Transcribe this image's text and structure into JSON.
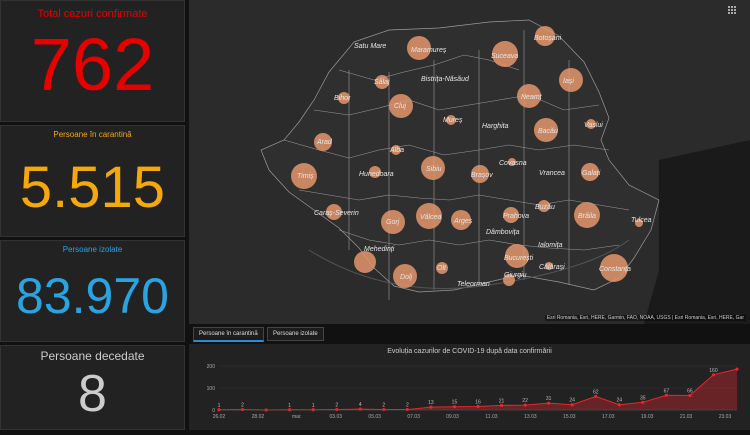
{
  "stats": {
    "confirmed": {
      "label": "Total cazuri confirmate",
      "value": "762",
      "color": "#e60000"
    },
    "quarantine": {
      "label": "Persoane în carantină",
      "value": "5.515",
      "color": "#f4a80b"
    },
    "isolated": {
      "label": "Persoane izolate",
      "value": "83.970",
      "color": "#29a4e0"
    },
    "deceased": {
      "label": "Persoane decedate",
      "value": "8",
      "color": "#cccccc"
    }
  },
  "map": {
    "cities": [
      "Satu Mare",
      "Maramureș",
      "Suceava",
      "Botoșani",
      "Sălaj",
      "Bistrița-Năsăud",
      "Iași",
      "Bihor",
      "Cluj",
      "Neamț",
      "Mureș",
      "Harghita",
      "Bacău",
      "Vaslui",
      "Arad",
      "Alba",
      "Covasna",
      "Galați",
      "Timiș",
      "Hunedoara",
      "Sibiu",
      "Brașov",
      "Vrancea",
      "Buzău",
      "Brăila",
      "Caraș-Severin",
      "Gorj",
      "Vâlcea",
      "Argeș",
      "Prahova",
      "Tulcea",
      "Mehedinți",
      "Dâmbovița",
      "Ialomița",
      "București",
      "Dolj",
      "Olt",
      "Giurgiu",
      "Călărași",
      "Constanța",
      "Teleorman"
    ],
    "attribution": "Esri Romania, Esri, HERE, Garmin, FAO, NOAA, USGS | Esri Romania, Esri, HERE, Gar",
    "grid_icon": "grid-icon"
  },
  "tabs": [
    {
      "label": "Persoane în carantină",
      "active": true
    },
    {
      "label": "Persoane izolate",
      "active": false
    }
  ],
  "chart_data": {
    "type": "area",
    "title": "Evoluția cazurilor de COVID-19 după data confirmării",
    "x_ticks": [
      "26.02",
      "28.02",
      "mar.",
      "03.03",
      "05.03",
      "07.03",
      "09.03",
      "11.03",
      "13.03",
      "15.03",
      "17.03",
      "19.03",
      "21.03",
      "23.03"
    ],
    "y_ticks": [
      "0",
      "100",
      "200"
    ],
    "ylim": [
      0,
      200
    ],
    "values": [
      1,
      2,
      0,
      1,
      1,
      2,
      4,
      2,
      2,
      13,
      15,
      16,
      21,
      22,
      31,
      24,
      62,
      24,
      35,
      67,
      66,
      160,
      186
    ],
    "labels": [
      "1",
      "2",
      "",
      "1",
      "1",
      "2",
      "4",
      "2",
      "2",
      "13",
      "15",
      "16",
      "21",
      "22",
      "31",
      "24",
      "62",
      "24",
      "35",
      "67",
      "66",
      "160",
      ""
    ],
    "color": "#e8262c"
  }
}
